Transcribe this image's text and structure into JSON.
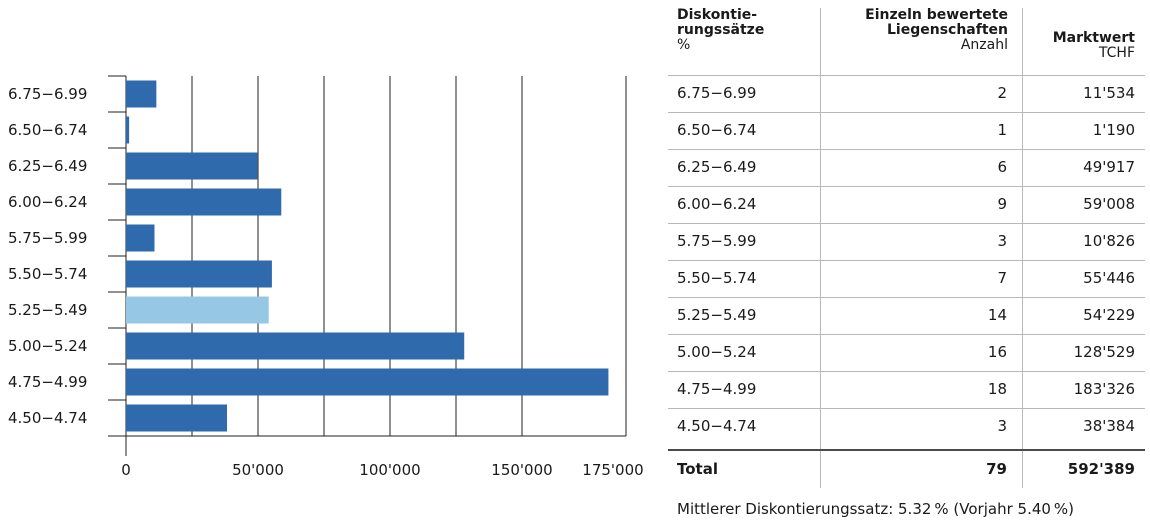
{
  "chart_data": {
    "type": "bar",
    "orientation": "horizontal",
    "categories": [
      "6.75−6.99",
      "6.50−6.74",
      "6.25−6.49",
      "6.00−6.24",
      "5.75−5.99",
      "5.50−5.74",
      "5.25−5.49",
      "5.00−5.24",
      "4.75−4.99",
      "4.50−4.74"
    ],
    "values": [
      11534,
      1190,
      49917,
      59008,
      10826,
      55446,
      54229,
      128529,
      183326,
      38384
    ],
    "highlight_category": "5.25−5.49",
    "x_ticks": [
      0,
      50000,
      100000,
      150000,
      175000
    ],
    "x_tick_labels": [
      "0",
      "50'000",
      "100'000",
      "150'000",
      "175'000"
    ],
    "xlim": [
      0,
      190000
    ],
    "grid": true,
    "colors": {
      "bar": "#2f6aad",
      "highlight": "#96c8e6",
      "grid": "#222222"
    }
  },
  "table": {
    "headers": {
      "rate": "Diskontie-\nrungssätze",
      "rate_unit": "%",
      "count": "Einzeln bewertete\nLiegenschaften",
      "count_unit": "Anzahl",
      "value": "Marktwert",
      "value_unit": "TCHF"
    },
    "rows": [
      {
        "rate": "6.75−6.99",
        "count": "2",
        "value": "11'534"
      },
      {
        "rate": "6.50−6.74",
        "count": "1",
        "value": "1'190"
      },
      {
        "rate": "6.25−6.49",
        "count": "6",
        "value": "49'917"
      },
      {
        "rate": "6.00−6.24",
        "count": "9",
        "value": "59'008"
      },
      {
        "rate": "5.75−5.99",
        "count": "3",
        "value": "10'826"
      },
      {
        "rate": "5.50−5.74",
        "count": "7",
        "value": "55'446"
      },
      {
        "rate": "5.25−5.49",
        "count": "14",
        "value": "54'229"
      },
      {
        "rate": "5.00−5.24",
        "count": "16",
        "value": "128'529"
      },
      {
        "rate": "4.75−4.99",
        "count": "18",
        "value": "183'326"
      },
      {
        "rate": "4.50−4.74",
        "count": "3",
        "value": "38'384"
      }
    ],
    "total": {
      "label": "Total",
      "count": "79",
      "value": "592'389"
    }
  },
  "footnote": "Mittlerer Diskontierungssatz: 5.32 % (Vorjahr 5.40 %)"
}
